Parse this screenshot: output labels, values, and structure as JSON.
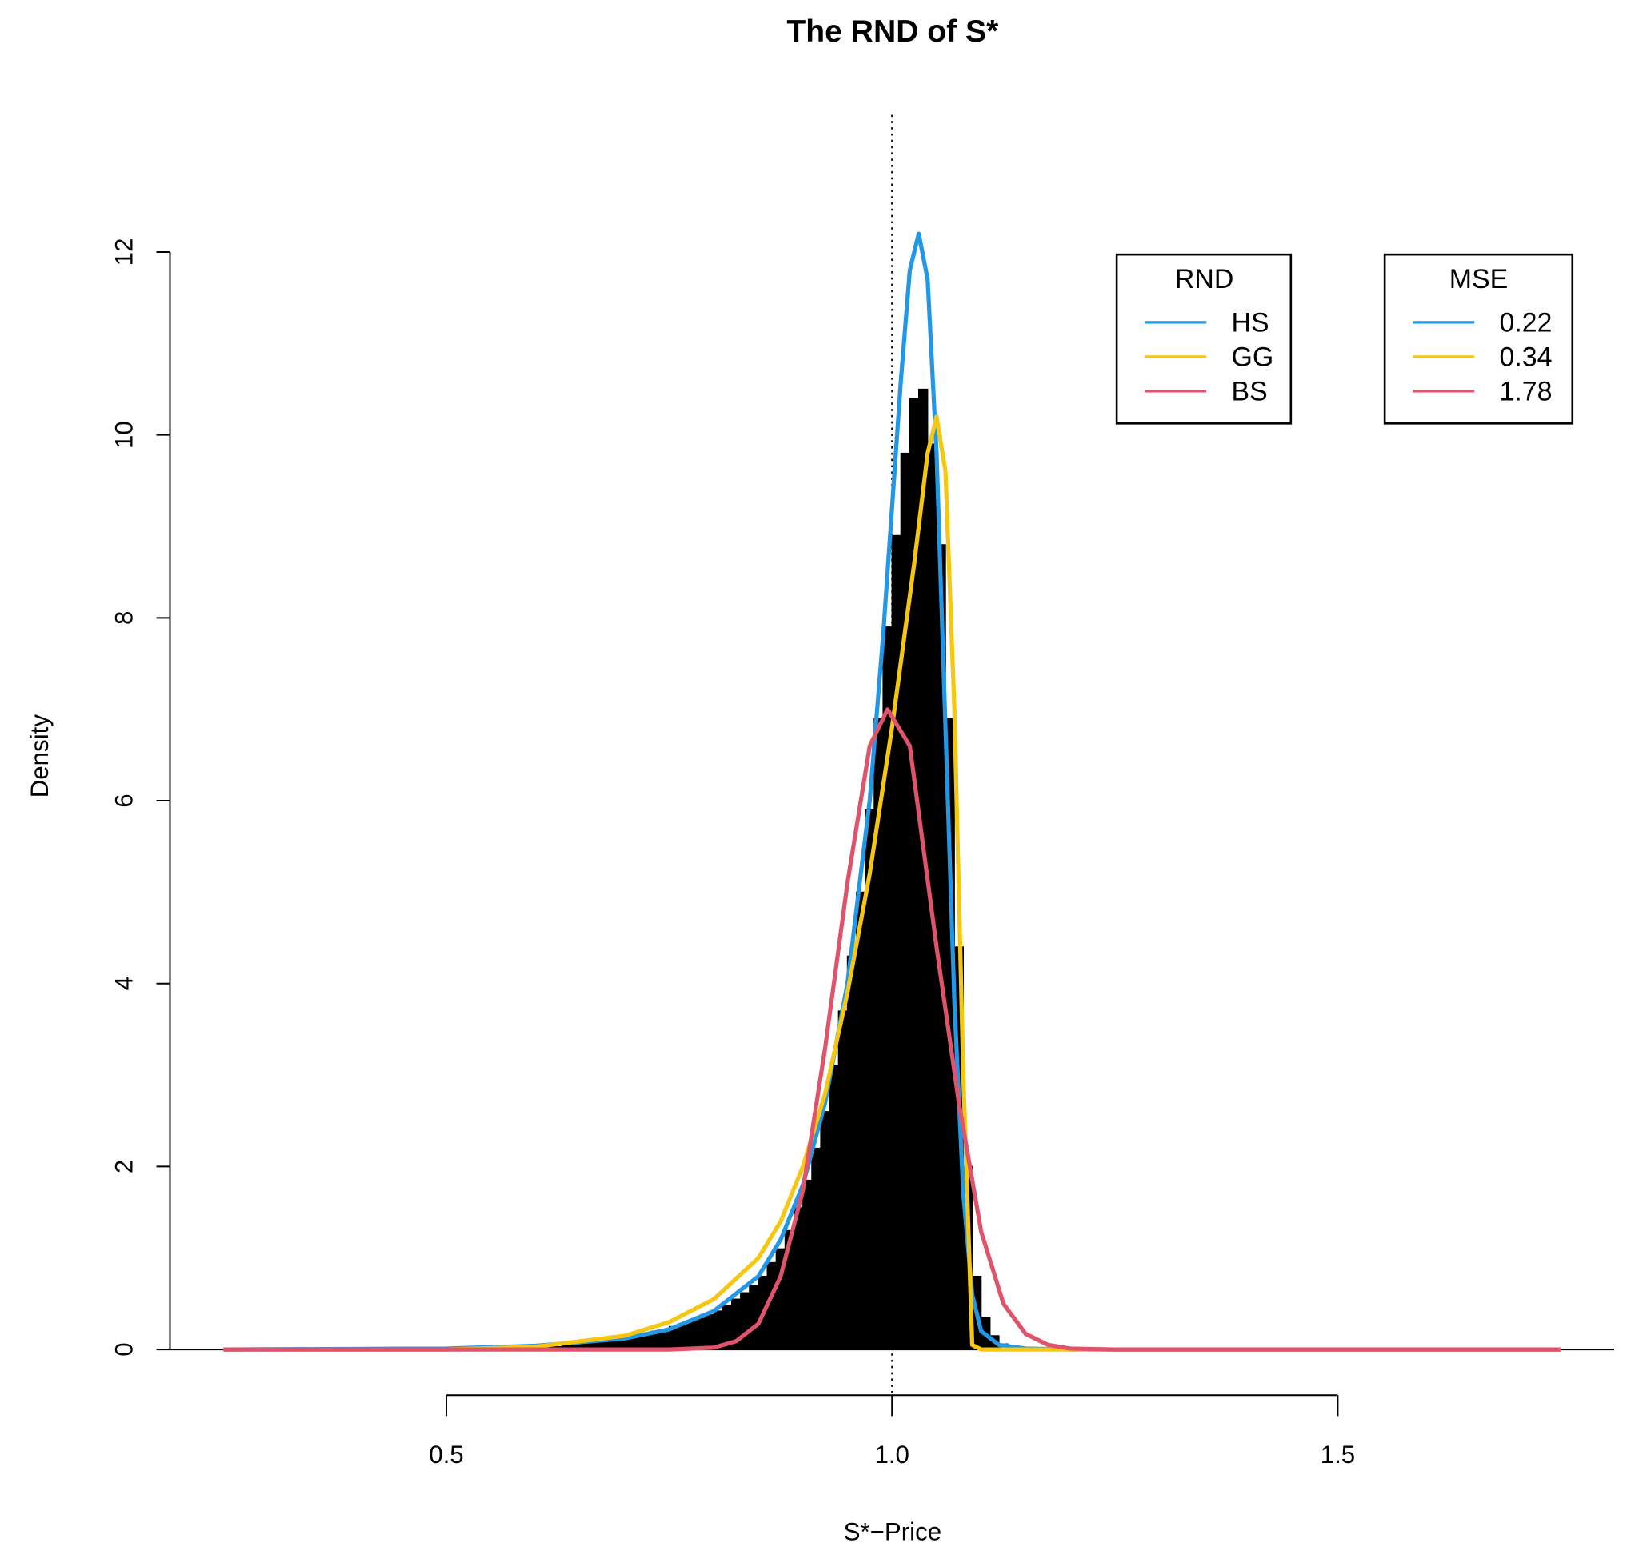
{
  "chart_data": {
    "type": "histogram",
    "title": "The RND of S*",
    "xlabel": "S*−Price",
    "ylabel": "Density",
    "xlim": [
      0.19,
      1.81
    ],
    "ylim": [
      -0.5,
      13.5
    ],
    "xticks": [
      0.5,
      {
        "value": 1.0,
        "label": "1.0"
      },
      1.5
    ],
    "yticks": [
      0,
      2,
      4,
      6,
      8,
      10,
      12
    ],
    "reference_x": 1.0,
    "color": "#000000",
    "bins": [
      0.6,
      0.61,
      0.62,
      0.63,
      0.64,
      0.65,
      0.66,
      0.67,
      0.68,
      0.69,
      0.7,
      0.71,
      0.72,
      0.73,
      0.74,
      0.75,
      0.76,
      0.77,
      0.78,
      0.79,
      0.8,
      0.81,
      0.82,
      0.83,
      0.84,
      0.85,
      0.86,
      0.87,
      0.88,
      0.89,
      0.9,
      0.91,
      0.92,
      0.93,
      0.94,
      0.95,
      0.96,
      0.97,
      0.98,
      0.99,
      1.0,
      1.01,
      1.02,
      1.03,
      1.04,
      1.05,
      1.06,
      1.07,
      1.08,
      1.09,
      1.1,
      1.11,
      1.12,
      1.13,
      1.14
    ],
    "counts": [
      0.02,
      0.03,
      0.03,
      0.04,
      0.05,
      0.06,
      0.08,
      0.09,
      0.11,
      0.12,
      0.14,
      0.16,
      0.18,
      0.2,
      0.22,
      0.25,
      0.28,
      0.3,
      0.34,
      0.38,
      0.42,
      0.48,
      0.55,
      0.62,
      0.7,
      0.8,
      0.95,
      1.1,
      1.3,
      1.55,
      1.85,
      2.2,
      2.6,
      3.1,
      3.7,
      4.3,
      5.0,
      5.9,
      6.9,
      7.9,
      8.9,
      9.8,
      10.4,
      10.5,
      9.9,
      8.8,
      6.9,
      4.4,
      2.0,
      0.8,
      0.35,
      0.15,
      0.06,
      0.02
    ],
    "series": [
      {
        "name": "HS",
        "color": "#2297E6",
        "x": [
          0.25,
          0.5,
          0.6,
          0.7,
          0.75,
          0.8,
          0.85,
          0.875,
          0.9,
          0.925,
          0.95,
          0.975,
          0.99,
          1.0,
          1.01,
          1.02,
          1.03,
          1.04,
          1.05,
          1.06,
          1.07,
          1.08,
          1.09,
          1.1,
          1.12,
          1.15,
          1.2,
          1.75
        ],
        "values": [
          0,
          0.01,
          0.04,
          0.12,
          0.22,
          0.42,
          0.8,
          1.2,
          1.8,
          2.7,
          4.0,
          6.0,
          7.8,
          9.2,
          10.6,
          11.8,
          12.2,
          11.7,
          9.8,
          6.8,
          3.8,
          1.7,
          0.6,
          0.2,
          0.05,
          0.01,
          0,
          0
        ]
      },
      {
        "name": "GG",
        "color": "#F5C710",
        "x": [
          0.25,
          0.5,
          0.6,
          0.7,
          0.75,
          0.8,
          0.85,
          0.875,
          0.9,
          0.925,
          0.95,
          0.975,
          1.0,
          1.025,
          1.04,
          1.05,
          1.06,
          1.07,
          1.08,
          1.09,
          1.1,
          1.75
        ],
        "values": [
          0,
          0,
          0.03,
          0.15,
          0.3,
          0.55,
          1.0,
          1.4,
          2.0,
          2.8,
          3.9,
          5.2,
          6.8,
          8.6,
          9.8,
          10.2,
          9.6,
          7.0,
          3.0,
          0.05,
          0,
          0
        ]
      },
      {
        "name": "BS",
        "color": "#DF536B",
        "x": [
          0.25,
          0.75,
          0.8,
          0.825,
          0.85,
          0.875,
          0.9,
          0.925,
          0.95,
          0.975,
          0.995,
          1.02,
          1.05,
          1.075,
          1.1,
          1.125,
          1.15,
          1.175,
          1.2,
          1.25,
          1.75
        ],
        "values": [
          0,
          0,
          0.02,
          0.09,
          0.28,
          0.8,
          1.74,
          3.3,
          5.1,
          6.6,
          7.0,
          6.6,
          4.4,
          2.7,
          1.29,
          0.5,
          0.17,
          0.05,
          0.01,
          0,
          0
        ]
      }
    ],
    "legends": [
      {
        "title": "RND",
        "entries": [
          "HS",
          "GG",
          "BS"
        ]
      },
      {
        "title": "MSE",
        "entries": [
          0.22,
          0.34,
          1.78
        ]
      }
    ]
  }
}
